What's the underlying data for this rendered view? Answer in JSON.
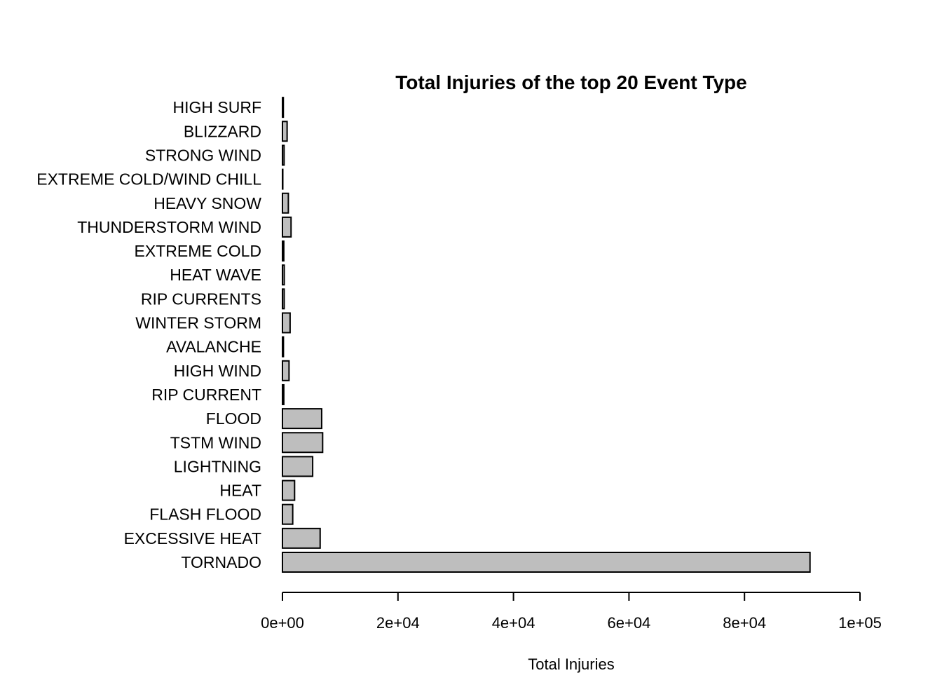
{
  "chart_data": {
    "type": "bar",
    "orientation": "horizontal",
    "title": "Total Injuries of the top 20 Event Type",
    "xlabel": "Total Injuries",
    "ylabel": "",
    "categories": [
      "TORNADO",
      "EXCESSIVE HEAT",
      "FLASH FLOOD",
      "HEAT",
      "LIGHTNING",
      "TSTM WIND",
      "FLOOD",
      "RIP CURRENT",
      "HIGH WIND",
      "AVALANCHE",
      "WINTER STORM",
      "RIP CURRENTS",
      "HEAT WAVE",
      "EXTREME COLD",
      "THUNDERSTORM WIND",
      "HEAVY SNOW",
      "EXTREME COLD/WIND CHILL",
      "STRONG WIND",
      "BLIZZARD",
      "HIGH SURF"
    ],
    "values": [
      91346,
      6525,
      1777,
      2100,
      5230,
      6957,
      6789,
      232,
      1137,
      170,
      1321,
      297,
      309,
      231,
      1488,
      1021,
      24,
      280,
      805,
      152
    ],
    "xlim": [
      0,
      100000
    ],
    "x_ticks": [
      0,
      20000,
      40000,
      60000,
      80000,
      100000
    ],
    "x_tick_labels": [
      "0e+00",
      "2e+04",
      "4e+04",
      "6e+04",
      "8e+04",
      "1e+05"
    ],
    "bar_color": "#bebebe",
    "grid": false,
    "legend": "none"
  }
}
